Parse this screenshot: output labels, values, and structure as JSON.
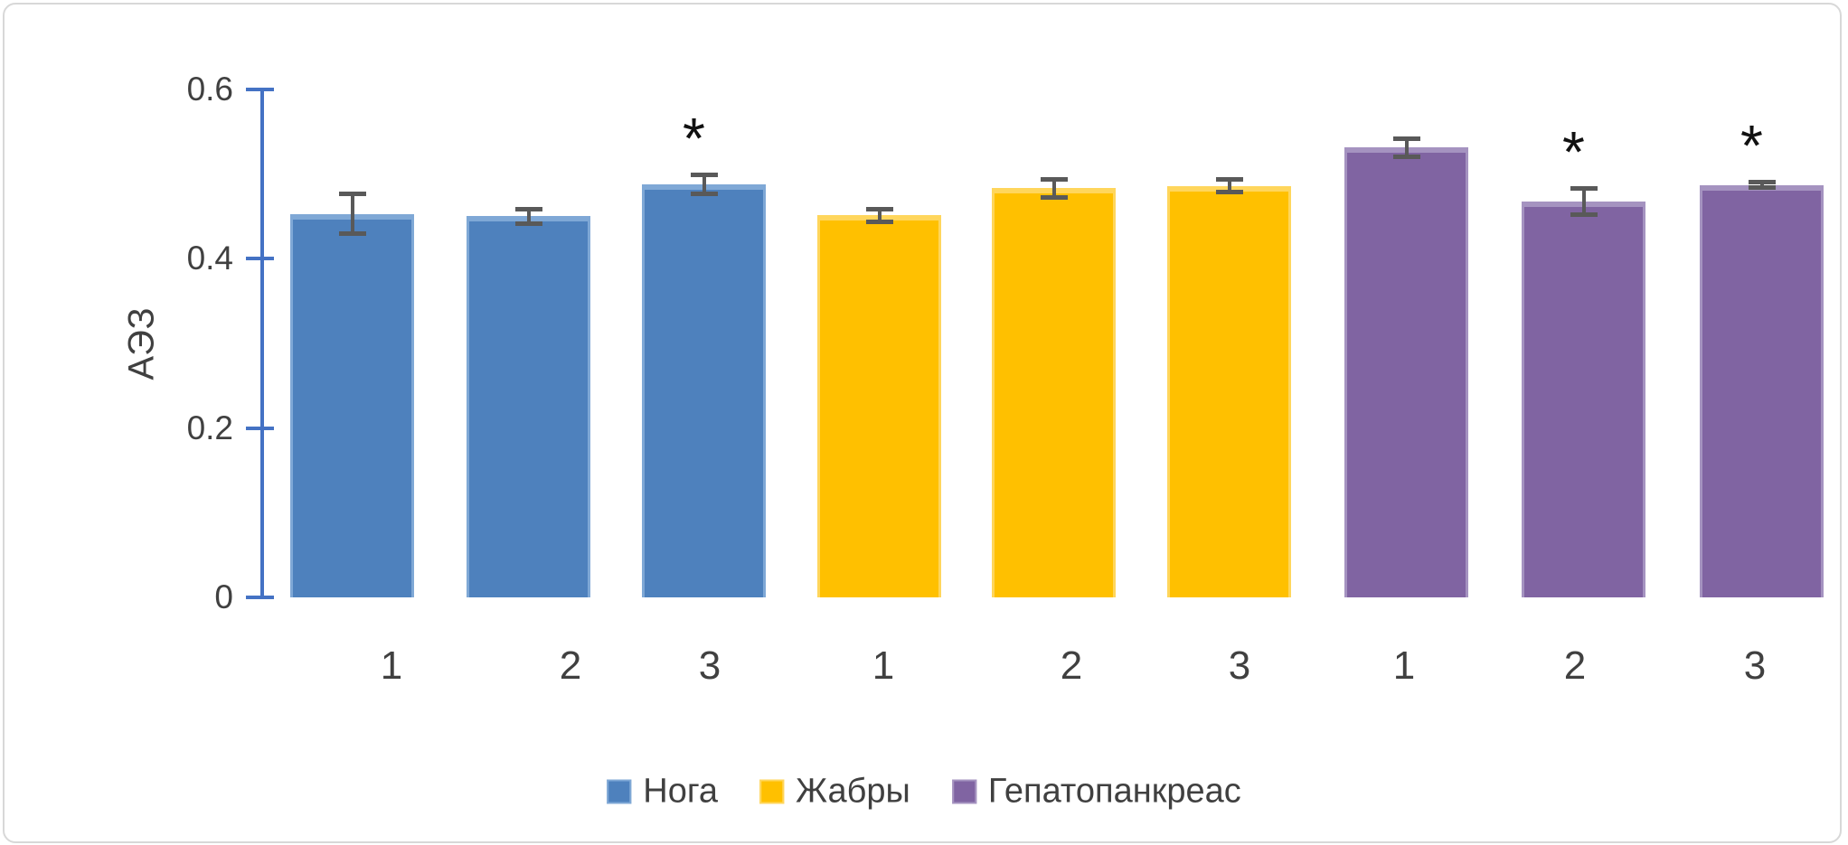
{
  "figure": {
    "background": "#ffffff",
    "frame_color": "#d8d8d8"
  },
  "chart_data": {
    "type": "bar",
    "title": "",
    "xlabel": "",
    "ylabel": "АЭЗ",
    "ylim": [
      0,
      0.6
    ],
    "yticks": [
      0,
      0.2,
      0.4,
      0.6
    ],
    "ytick_labels": [
      "0",
      "0.2",
      "0.4",
      "0.6"
    ],
    "grid": false,
    "legend_position": "bottom",
    "axis_color": "#4472C4",
    "error_bar_color": "#595959",
    "text_color": "#404040",
    "significance_marker": "*",
    "categories": [
      "1",
      "2",
      "3",
      "1",
      "2",
      "3",
      "1",
      "2",
      "3"
    ],
    "series": [
      {
        "name": "Нога",
        "color": "#4E81BD",
        "edge_color": "#7FA8D6",
        "categories": [
          "1",
          "2",
          "3"
        ],
        "values": [
          0.453,
          0.45,
          0.488
        ],
        "errors": [
          0.024,
          0.009,
          0.012
        ],
        "significant": [
          false,
          false,
          true
        ]
      },
      {
        "name": "Жабры",
        "color": "#FFC000",
        "edge_color": "#FFD65C",
        "categories": [
          "1",
          "2",
          "3"
        ],
        "values": [
          0.451,
          0.483,
          0.486
        ],
        "errors": [
          0.008,
          0.011,
          0.008
        ],
        "significant": [
          false,
          false,
          false
        ]
      },
      {
        "name": "Гепатопанкреас",
        "color": "#8064A2",
        "edge_color": "#A violet",
        "categories": [
          "1",
          "2",
          "3"
        ],
        "values": [
          0.531,
          0.467,
          0.487
        ],
        "errors": [
          0.011,
          0.016,
          0.004
        ],
        "significant": [
          false,
          true,
          true
        ]
      }
    ]
  }
}
